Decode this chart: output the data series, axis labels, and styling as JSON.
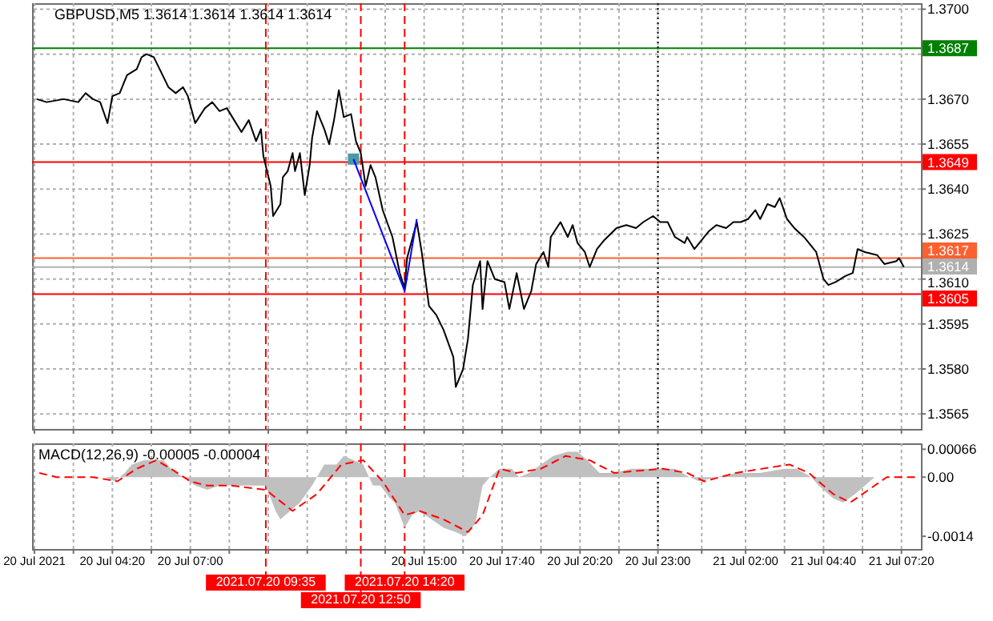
{
  "chart_data": [
    {
      "type": "line",
      "title": "GBPUSD,M5  1.3614 1.3614 1.3614 1.3614",
      "xlim": [
        "2021-07-20T01:35",
        "2021-07-21T08:00"
      ],
      "ylim": [
        1.356,
        1.3702
      ],
      "grid": true,
      "tick_labels": "y",
      "xticks": [
        {
          "value": "2021-07-20T01:40",
          "label": null
        },
        {
          "value": "2021-07-20T03:00",
          "label": null
        },
        {
          "value": "2021-07-20T04:20",
          "label": null
        },
        {
          "value": "2021-07-20T05:40",
          "label": null
        },
        {
          "value": "2021-07-20T07:00",
          "label": null
        },
        {
          "value": "2021-07-20T08:20",
          "label": null
        },
        {
          "value": "2021-07-20T09:40",
          "label": null
        },
        {
          "value": "2021-07-20T11:00",
          "label": null
        },
        {
          "value": "2021-07-20T12:20",
          "label": null
        },
        {
          "value": "2021-07-20T13:40",
          "label": null
        },
        {
          "value": "2021-07-20T15:00",
          "label": null
        },
        {
          "value": "2021-07-20T16:20",
          "label": null
        },
        {
          "value": "2021-07-20T17:40",
          "label": null
        },
        {
          "value": "2021-07-20T19:00",
          "label": null
        },
        {
          "value": "2021-07-20T20:20",
          "label": null
        },
        {
          "value": "2021-07-20T21:40",
          "label": null
        },
        {
          "value": "2021-07-20T23:00",
          "label": null
        },
        {
          "value": "2021-07-21T00:30",
          "label": null
        },
        {
          "value": "2021-07-21T02:00",
          "label": null
        },
        {
          "value": "2021-07-21T03:20",
          "label": null
        },
        {
          "value": "2021-07-21T04:40",
          "label": null
        },
        {
          "value": "2021-07-21T06:00",
          "label": null
        },
        {
          "value": "2021-07-21T07:20",
          "label": null
        }
      ],
      "yticks": [
        {
          "value": 1.37,
          "label": "1.3700"
        },
        {
          "value": 1.3685,
          "label": null
        },
        {
          "value": 1.367,
          "label": "1.3670"
        },
        1.3655,
        {
          "value": 1.364,
          "label": "1.3640"
        },
        1.3625,
        {
          "value": 1.361,
          "label": "1.3610"
        },
        1.3595,
        {
          "value": 1.358,
          "label": "1.3580"
        },
        1.3565
      ],
      "ref_lines": [
        {
          "axis": "y",
          "value": 1.3687,
          "label": "1.3687",
          "color": "#008000"
        },
        {
          "axis": "y",
          "value": 1.3649,
          "label": "1.3649",
          "color": "#ff0000"
        },
        {
          "axis": "y",
          "value": 1.3617,
          "label": "1.3617",
          "color": "#ff6030"
        },
        {
          "axis": "y",
          "value": 1.3614,
          "label": "1.3614",
          "color": "#b0b0b0"
        },
        {
          "axis": "y",
          "value": 1.3605,
          "label": "1.3605",
          "color": "#ff0000"
        },
        {
          "axis": "x",
          "value": "2021-07-20T09:35",
          "color": "#ff0000",
          "line_style": "dashed"
        },
        {
          "axis": "x",
          "value": "2021-07-20T12:50",
          "color": "#ff0000",
          "line_style": "dashed"
        },
        {
          "axis": "x",
          "value": "2021-07-20T14:20",
          "color": "#ff0000",
          "line_style": "dashed"
        },
        {
          "axis": "x",
          "value": "2021-07-20T23:00",
          "color": "#000000",
          "line_style": "dotted"
        }
      ],
      "series": [
        {
          "color": "#000000",
          "x": [
            "2021-07-20T01:45",
            "2021-07-20T02:05",
            "2021-07-20T02:40",
            "2021-07-20T03:10",
            "2021-07-20T03:25",
            "2021-07-20T03:40",
            "2021-07-20T03:55",
            "2021-07-20T04:10",
            "2021-07-20T04:20",
            "2021-07-20T04:35",
            "2021-07-20T04:50",
            "2021-07-20T05:10",
            "2021-07-20T05:20",
            "2021-07-20T05:30",
            "2021-07-20T05:45",
            "2021-07-20T06:00",
            "2021-07-20T06:15",
            "2021-07-20T06:30",
            "2021-07-20T06:45",
            "2021-07-20T06:55",
            "2021-07-20T07:10",
            "2021-07-20T07:30",
            "2021-07-20T07:45",
            "2021-07-20T08:00",
            "2021-07-20T08:15",
            "2021-07-20T08:30",
            "2021-07-20T08:45",
            "2021-07-20T09:00",
            "2021-07-20T09:15",
            "2021-07-20T09:25",
            "2021-07-20T09:30",
            "2021-07-20T09:45",
            "2021-07-20T09:50",
            "2021-07-20T10:05",
            "2021-07-20T10:10",
            "2021-07-20T10:20",
            "2021-07-20T10:30",
            "2021-07-20T10:35",
            "2021-07-20T10:45",
            "2021-07-20T10:55",
            "2021-07-20T11:05",
            "2021-07-20T11:10",
            "2021-07-20T11:20",
            "2021-07-20T11:35",
            "2021-07-20T11:45",
            "2021-07-20T11:55",
            "2021-07-20T12:05",
            "2021-07-20T12:15",
            "2021-07-20T12:30",
            "2021-07-20T12:40",
            "2021-07-20T12:50",
            "2021-07-20T13:00",
            "2021-07-20T13:10",
            "2021-07-20T13:20",
            "2021-07-20T13:35",
            "2021-07-20T13:55",
            "2021-07-20T14:10",
            "2021-07-20T14:20",
            "2021-07-20T14:25",
            "2021-07-20T14:45",
            "2021-07-20T14:55",
            "2021-07-20T15:10",
            "2021-07-20T15:25",
            "2021-07-20T15:40",
            "2021-07-20T16:00",
            "2021-07-20T16:05",
            "2021-07-20T16:20",
            "2021-07-20T16:30",
            "2021-07-20T16:40",
            "2021-07-20T16:55",
            "2021-07-20T17:00",
            "2021-07-20T17:10",
            "2021-07-20T17:25",
            "2021-07-20T17:45",
            "2021-07-20T17:55",
            "2021-07-20T18:10",
            "2021-07-20T18:25",
            "2021-07-20T18:40",
            "2021-07-20T18:50",
            "2021-07-20T19:05",
            "2021-07-20T19:15",
            "2021-07-20T19:20",
            "2021-07-20T19:40",
            "2021-07-20T19:55",
            "2021-07-20T20:05",
            "2021-07-20T20:15",
            "2021-07-20T20:30",
            "2021-07-20T20:40",
            "2021-07-20T20:55",
            "2021-07-20T21:10",
            "2021-07-20T21:35",
            "2021-07-20T21:55",
            "2021-07-20T22:15",
            "2021-07-20T22:30",
            "2021-07-20T22:50",
            "2021-07-20T23:05",
            "2021-07-20T23:20",
            "2021-07-20T23:35",
            "2021-07-20T23:55",
            "2021-07-21T00:00",
            "2021-07-21T00:15",
            "2021-07-21T00:30",
            "2021-07-21T00:45",
            "2021-07-21T01:00",
            "2021-07-21T01:20",
            "2021-07-21T01:35",
            "2021-07-21T01:50",
            "2021-07-21T02:05",
            "2021-07-21T02:20",
            "2021-07-21T02:30",
            "2021-07-21T02:45",
            "2021-07-21T03:00",
            "2021-07-21T03:10",
            "2021-07-21T03:25",
            "2021-07-21T03:40",
            "2021-07-21T04:00",
            "2021-07-21T04:25",
            "2021-07-21T04:40",
            "2021-07-21T04:50",
            "2021-07-21T05:05",
            "2021-07-21T05:25",
            "2021-07-21T05:40",
            "2021-07-21T05:50",
            "2021-07-21T06:05",
            "2021-07-21T06:30",
            "2021-07-21T06:45",
            "2021-07-21T07:10",
            "2021-07-21T07:15",
            "2021-07-21T07:25"
          ],
          "values": [
            1.367,
            1.3669,
            1.367,
            1.3669,
            1.3672,
            1.367,
            1.3669,
            1.3662,
            1.3671,
            1.3672,
            1.3678,
            1.368,
            1.3684,
            1.3685,
            1.3684,
            1.3679,
            1.3674,
            1.3672,
            1.3674,
            1.3671,
            1.3662,
            1.3667,
            1.3669,
            1.3666,
            1.3667,
            1.3663,
            1.3659,
            1.3663,
            1.3656,
            1.366,
            1.3651,
            1.3641,
            1.3631,
            1.3635,
            1.3644,
            1.3646,
            1.3652,
            1.3646,
            1.3652,
            1.3638,
            1.3648,
            1.3657,
            1.3666,
            1.366,
            1.3655,
            1.3663,
            1.3673,
            1.3664,
            1.3665,
            1.3656,
            1.3652,
            1.3641,
            1.3648,
            1.3644,
            1.3633,
            1.3624,
            1.3612,
            1.3607,
            1.3617,
            1.3629,
            1.3619,
            1.3601,
            1.3598,
            1.3593,
            1.3584,
            1.3574,
            1.358,
            1.359,
            1.3608,
            1.3616,
            1.36,
            1.3616,
            1.361,
            1.3609,
            1.36,
            1.3612,
            1.36,
            1.3606,
            1.3615,
            1.3619,
            1.3614,
            1.3624,
            1.3629,
            1.3624,
            1.3628,
            1.3622,
            1.3619,
            1.3614,
            1.362,
            1.3623,
            1.3627,
            1.3628,
            1.3627,
            1.3629,
            1.3631,
            1.3629,
            1.3629,
            1.3624,
            1.3622,
            1.3624,
            1.362,
            1.3623,
            1.3626,
            1.3628,
            1.3627,
            1.3629,
            1.3629,
            1.363,
            1.3633,
            1.363,
            1.3635,
            1.3634,
            1.3637,
            1.363,
            1.3627,
            1.3624,
            1.3619,
            1.361,
            1.3608,
            1.3609,
            1.3611,
            1.3612,
            1.362,
            1.3619,
            1.3618,
            1.3615,
            1.3616,
            1.3617,
            1.3614
          ]
        },
        {
          "type": "scatter",
          "marker": "square",
          "color": "#4a9aa5",
          "x": [
            "2021-07-20T12:35"
          ],
          "values": [
            1.365
          ]
        },
        {
          "color": "#0000ff",
          "x": [
            "2021-07-20T12:35",
            "2021-07-20T14:20",
            "2021-07-20T14:45"
          ],
          "values": [
            1.365,
            1.3606,
            1.363
          ]
        }
      ]
    },
    {
      "type": "area",
      "title": "MACD(12,26,9) -0.00005 -0.00004",
      "xlim": [
        "2021-07-20T01:35",
        "2021-07-21T08:00"
      ],
      "ylim": [
        -0.0017,
        0.0008
      ],
      "grid": "x",
      "xticks": [
        {
          "value": "2021-07-20T01:40",
          "label": "20 Jul 2021"
        },
        {
          "value": "2021-07-20T03:00",
          "label": null
        },
        {
          "value": "2021-07-20T04:20",
          "label": "20 Jul 04:20"
        },
        {
          "value": "2021-07-20T05:40",
          "label": null
        },
        {
          "value": "2021-07-20T07:00",
          "label": "20 Jul 07:00"
        },
        {
          "value": "2021-07-20T08:20",
          "label": null
        },
        {
          "value": "2021-07-20T09:40",
          "label": null
        },
        {
          "value": "2021-07-20T11:00",
          "label": null
        },
        {
          "value": "2021-07-20T12:20",
          "label": null
        },
        {
          "value": "2021-07-20T13:40",
          "label": null
        },
        {
          "value": "2021-07-20T15:00",
          "label": "20 Jul 15:00"
        },
        {
          "value": "2021-07-20T16:20",
          "label": null
        },
        {
          "value": "2021-07-20T17:40",
          "label": "20 Jul 17:40"
        },
        {
          "value": "2021-07-20T19:00",
          "label": null
        },
        {
          "value": "2021-07-20T20:20",
          "label": "20 Jul 20:20"
        },
        {
          "value": "2021-07-20T21:40",
          "label": null
        },
        {
          "value": "2021-07-20T23:00",
          "label": "20 Jul 23:00"
        },
        {
          "value": "2021-07-21T00:30",
          "label": null
        },
        {
          "value": "2021-07-21T02:00",
          "label": "21 Jul 02:00"
        },
        {
          "value": "2021-07-21T03:20",
          "label": null
        },
        {
          "value": "2021-07-21T04:40",
          "label": "21 Jul 04:40"
        },
        {
          "value": "2021-07-21T06:00",
          "label": null
        },
        {
          "value": "2021-07-21T07:20",
          "label": "21 Jul 07:20"
        }
      ],
      "yticks": [
        0.00066,
        {
          "value": 0,
          "label": "0.00"
        },
        -0.0014
      ],
      "ref_lines": [
        {
          "axis": "x",
          "value": "2021-07-20T09:35",
          "label": "2021.07.20 09:35",
          "color": "#ff0000",
          "line_style": "dashed"
        },
        {
          "axis": "x",
          "value": "2021-07-20T12:50",
          "label": "2021.07.20 12:50",
          "color": "#ff0000",
          "line_style": "dashed"
        },
        {
          "axis": "x",
          "value": "2021-07-20T14:20",
          "label": "2021.07.20 14:20",
          "color": "#ff0000",
          "line_style": "dashed"
        },
        {
          "axis": "x",
          "value": "2021-07-20T23:00",
          "color": "#000000",
          "line_style": "dotted"
        }
      ],
      "series": [
        {
          "color": "#c0c0c0",
          "x": [
            "2021-07-20T01:50",
            "2021-07-20T02:25",
            "2021-07-20T04:05",
            "2021-07-20T04:25",
            "2021-07-20T04:45",
            "2021-07-20T05:00",
            "2021-07-20T05:25",
            "2021-07-20T05:45",
            "2021-07-20T06:05",
            "2021-07-20T06:20",
            "2021-07-20T06:45",
            "2021-07-20T07:10",
            "2021-07-20T07:35",
            "2021-07-20T08:00",
            "2021-07-20T08:25",
            "2021-07-20T09:05",
            "2021-07-20T09:35",
            "2021-07-20T09:55",
            "2021-07-20T10:05",
            "2021-07-20T10:25",
            "2021-07-20T10:45",
            "2021-07-20T11:10",
            "2021-07-20T11:20",
            "2021-07-20T11:35",
            "2021-07-20T12:00",
            "2021-07-20T12:15",
            "2021-07-20T12:35",
            "2021-07-20T12:55",
            "2021-07-20T13:15",
            "2021-07-20T13:30",
            "2021-07-20T13:50",
            "2021-07-20T14:00",
            "2021-07-20T14:20",
            "2021-07-20T14:35",
            "2021-07-20T14:50",
            "2021-07-20T15:15",
            "2021-07-20T15:40",
            "2021-07-20T16:05",
            "2021-07-20T16:25",
            "2021-07-20T16:45",
            "2021-07-20T17:00",
            "2021-07-20T17:15",
            "2021-07-20T17:35",
            "2021-07-20T18:00",
            "2021-07-20T18:15",
            "2021-07-20T18:35",
            "2021-07-20T19:00",
            "2021-07-20T19:25",
            "2021-07-20T19:55",
            "2021-07-20T20:15",
            "2021-07-20T20:35",
            "2021-07-20T21:00",
            "2021-07-20T21:30",
            "2021-07-20T22:05",
            "2021-07-20T22:45",
            "2021-07-20T23:35",
            "2021-07-21T00:05",
            "2021-07-21T00:25",
            "2021-07-21T01:00",
            "2021-07-21T01:40",
            "2021-07-21T02:30",
            "2021-07-21T03:20",
            "2021-07-21T03:45",
            "2021-07-21T04:15",
            "2021-07-21T04:30",
            "2021-07-21T05:00",
            "2021-07-21T05:20",
            "2021-07-21T05:45",
            "2021-07-21T06:05",
            "2021-07-21T06:25",
            "2021-07-21T07:00",
            "2021-07-21T07:50"
          ],
          "values": [
            0,
            0,
            0,
            -0.0001,
            0.0001,
            0.0003,
            0.0004,
            0.0004,
            0.0004,
            0.0002,
            0,
            -0.0002,
            -0.0003,
            -0.0002,
            -0.0002,
            -0.0002,
            -0.0002,
            -0.0008,
            -0.001,
            -0.0008,
            -0.0006,
            -0.0002,
            0,
            0.0003,
            0.0003,
            0.0005,
            0.0004,
            0.0003,
            -0.0002,
            -0.0002,
            -0.0005,
            -0.0006,
            -0.0012,
            -0.0009,
            -0.0008,
            -0.001,
            -0.0012,
            -0.0013,
            -0.0014,
            -0.0011,
            -0.0002,
            0,
            0.0002,
            0.0002,
            0,
            0.0001,
            0.0003,
            0.0005,
            0.0006,
            0.0006,
            0.0004,
            0.0001,
            0.0001,
            0.0002,
            0.0002,
            0.0002,
            0,
            -0.0001,
            0,
            0.0001,
            0.0001,
            0.0002,
            0.0002,
            0,
            -0.0002,
            -0.0005,
            -0.0006,
            -0.0004,
            -0.0002,
            0,
            0,
            0
          ]
        },
        {
          "type": "line",
          "color": "#ff0000",
          "line_style": "dashed",
          "x": [
            "2021-07-20T01:50",
            "2021-07-20T02:25",
            "2021-07-20T03:40",
            "2021-07-20T04:30",
            "2021-07-20T05:10",
            "2021-07-20T05:50",
            "2021-07-20T06:20",
            "2021-07-20T07:00",
            "2021-07-20T07:35",
            "2021-07-20T08:25",
            "2021-07-20T09:35",
            "2021-07-20T10:30",
            "2021-07-20T11:20",
            "2021-07-20T12:10",
            "2021-07-20T12:55",
            "2021-07-20T13:35",
            "2021-07-20T14:20",
            "2021-07-20T14:50",
            "2021-07-20T15:40",
            "2021-07-20T16:30",
            "2021-07-20T17:00",
            "2021-07-20T17:35",
            "2021-07-20T18:10",
            "2021-07-20T19:00",
            "2021-07-20T19:50",
            "2021-07-20T20:40",
            "2021-07-20T21:30",
            "2021-07-20T23:10",
            "2021-07-21T00:00",
            "2021-07-21T00:35",
            "2021-07-21T01:40",
            "2021-07-21T03:30",
            "2021-07-21T04:10",
            "2021-07-21T05:00",
            "2021-07-21T05:35",
            "2021-07-21T06:25",
            "2021-07-21T06:50",
            "2021-07-21T07:50"
          ],
          "values": [
            0.0001,
            0,
            0,
            -0.0001,
            0.0002,
            0.0004,
            0.0002,
            -0.0001,
            -0.0002,
            -0.0002,
            -0.0003,
            -0.0008,
            -0.0004,
            0.0003,
            0.0004,
            -0.0001,
            -0.0009,
            -0.0008,
            -0.001,
            -0.0013,
            -0.0009,
            0.0002,
            0.0001,
            0.0002,
            0.0005,
            0.0004,
            0.0001,
            0.0002,
            0.0001,
            -0.0001,
            0.0001,
            0.0003,
            0.0001,
            -0.0004,
            -0.0006,
            -0.0002,
            0,
            0
          ]
        }
      ]
    }
  ]
}
